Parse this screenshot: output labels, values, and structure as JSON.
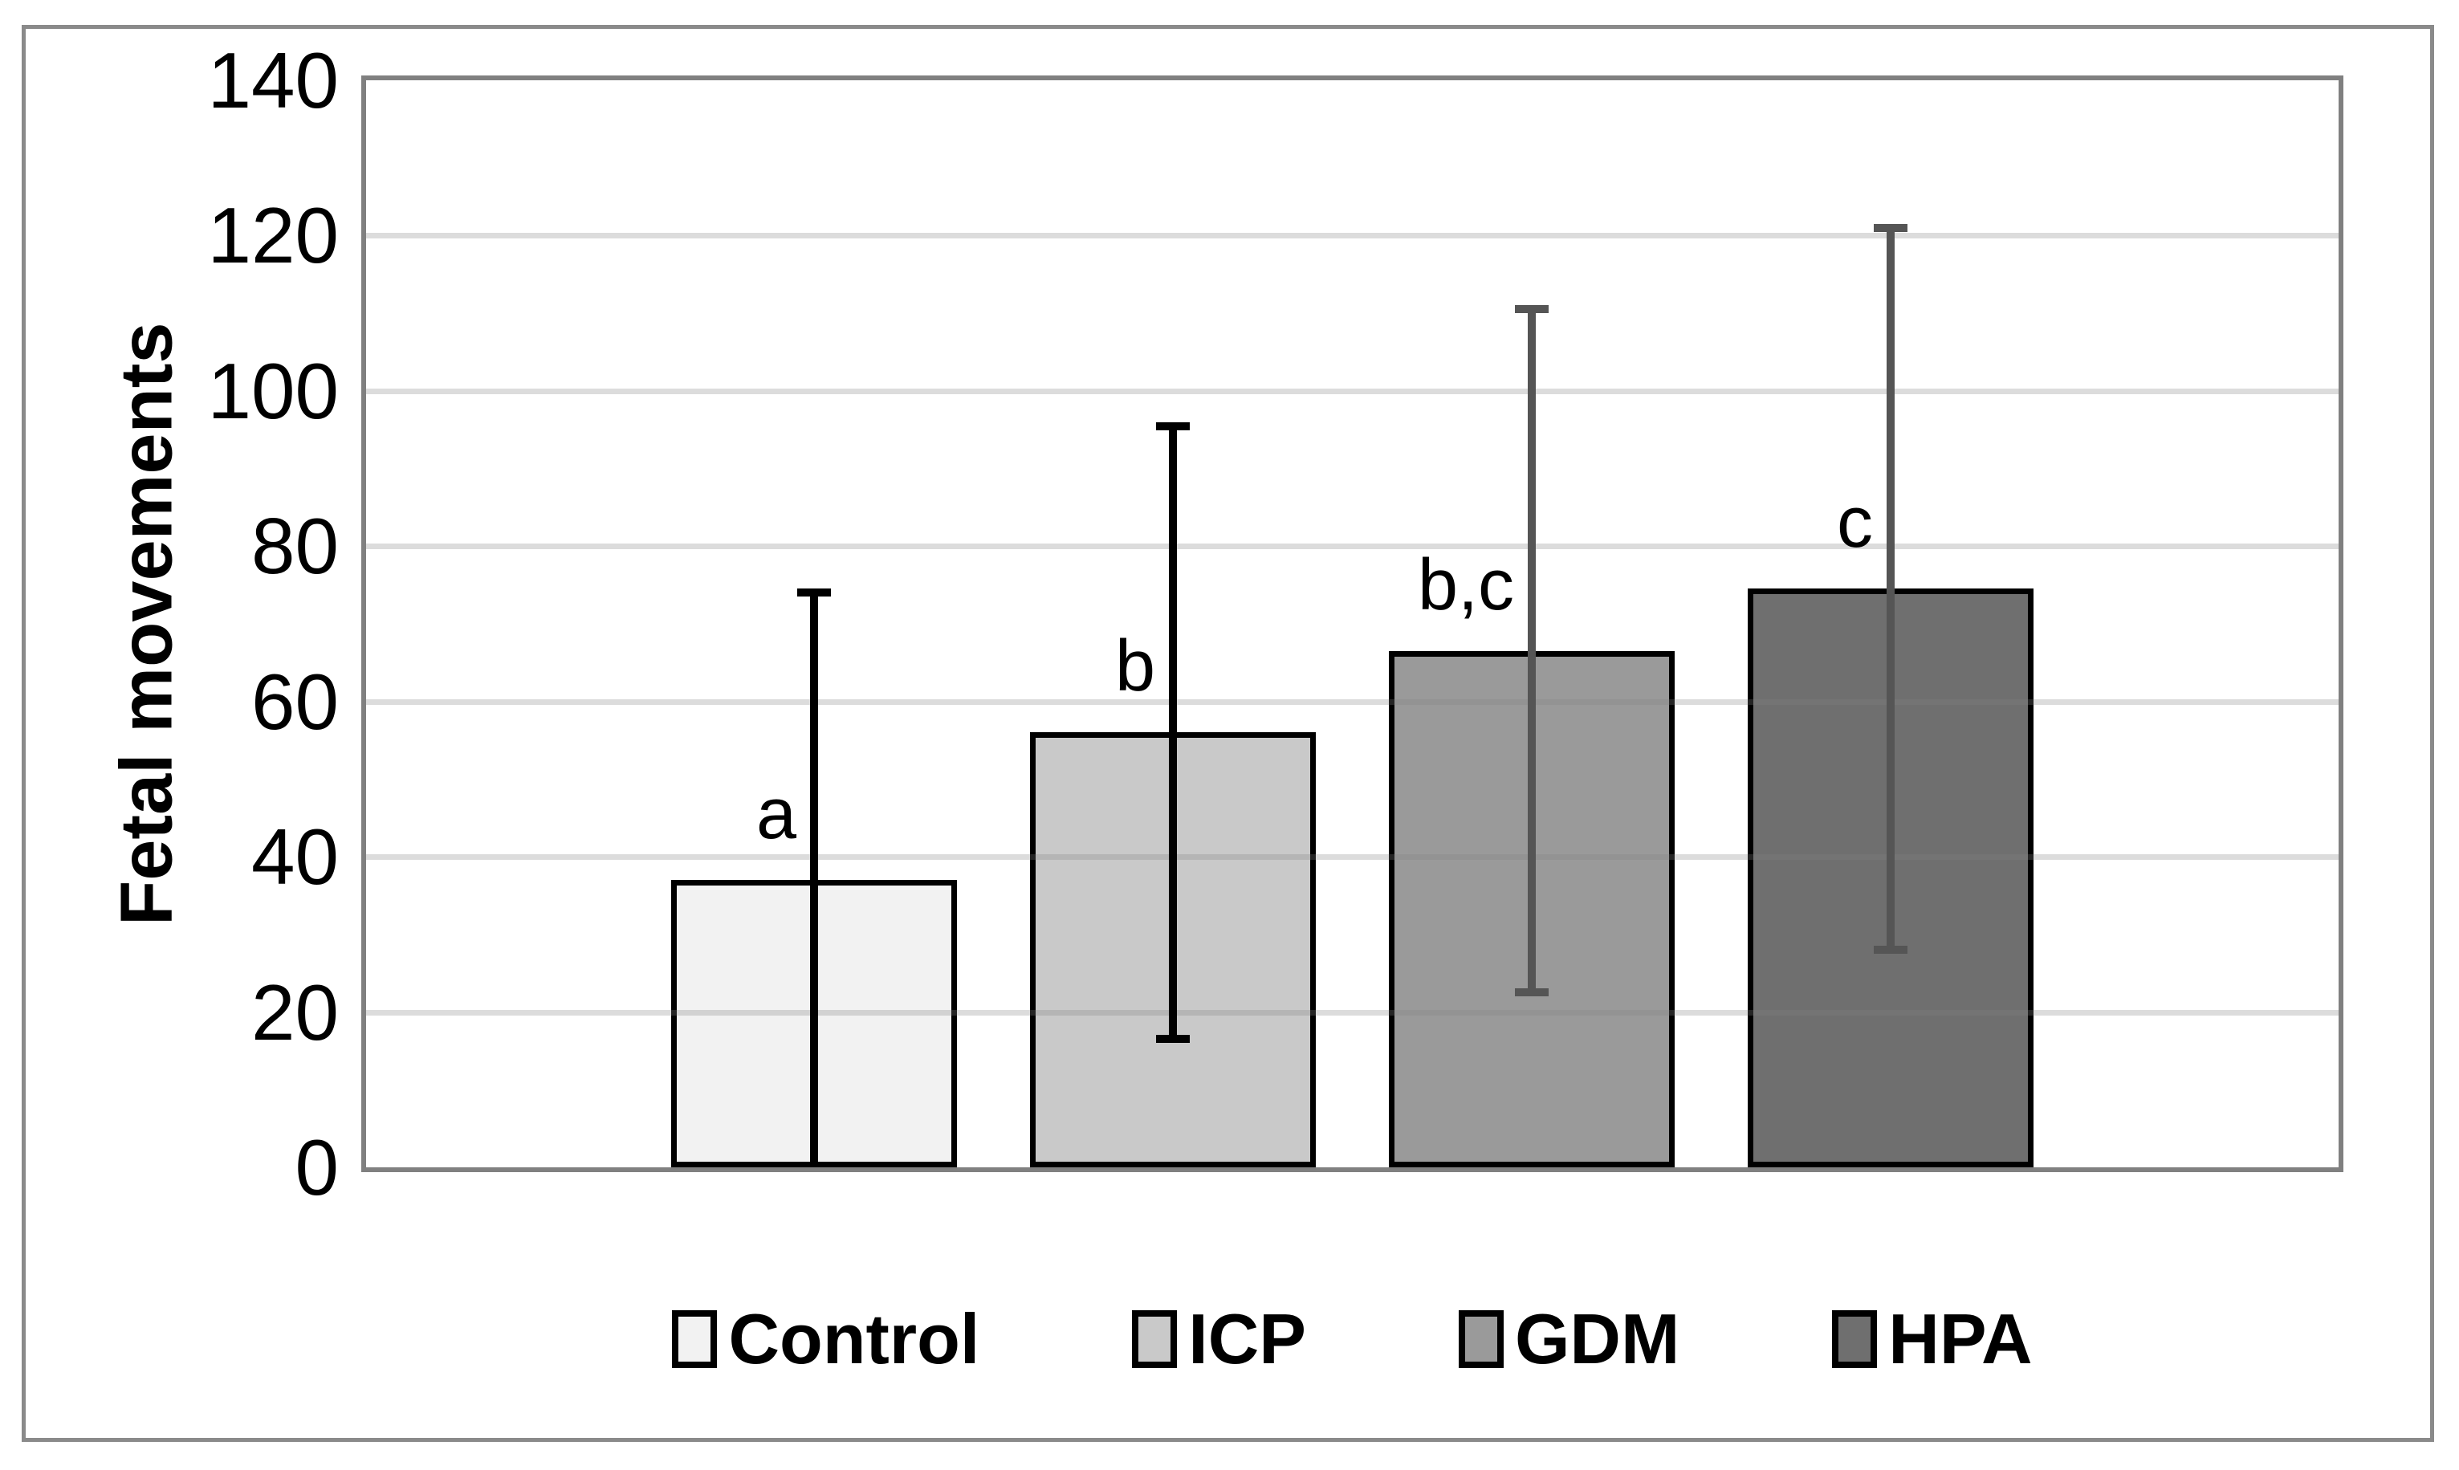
{
  "chart_data": {
    "type": "bar",
    "title": "",
    "xlabel": "",
    "ylabel": "Fetal movements",
    "ylim": [
      0,
      140
    ],
    "yticks": [
      0,
      20,
      40,
      60,
      80,
      100,
      120,
      140
    ],
    "grid": true,
    "legend_position": "bottom",
    "categories": [
      "Control",
      "ICP",
      "GDM",
      "HPA"
    ],
    "values": [
      37,
      56,
      66.5,
      74.5
    ],
    "errors": [
      37.5,
      40,
      44.5,
      47
    ],
    "sig_labels": [
      "a",
      "b",
      "b,c",
      "c"
    ],
    "bar_fills": [
      "#f2f2f2",
      "#c9c9c9",
      "#9a9a9a",
      "#6f6f6f"
    ],
    "bar_border_color": "#000000",
    "error_colors": [
      "#000000",
      "#000000",
      "#555555",
      "#555555"
    ],
    "gridline_color": "#d9d9d9",
    "axis_color": "#808080"
  }
}
